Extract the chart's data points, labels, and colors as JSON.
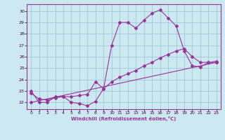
{
  "title": "",
  "xlabel": "Windchill (Refroidissement éolien,°C)",
  "bg_color": "#cce8f0",
  "line_color": "#993399",
  "xlim": [
    -0.5,
    23.5
  ],
  "ylim": [
    21.4,
    30.6
  ],
  "xticks": [
    0,
    1,
    2,
    3,
    4,
    5,
    6,
    7,
    8,
    9,
    10,
    11,
    12,
    13,
    14,
    15,
    16,
    17,
    18,
    19,
    20,
    21,
    22,
    23
  ],
  "yticks": [
    22,
    23,
    24,
    25,
    26,
    27,
    28,
    29,
    30
  ],
  "series1_x": [
    0,
    1,
    2,
    3,
    4,
    5,
    6,
    7,
    8,
    9,
    10,
    11,
    12,
    13,
    14,
    15,
    16,
    17,
    18,
    19,
    20,
    21,
    22,
    23
  ],
  "series1_y": [
    23.0,
    22.0,
    22.0,
    22.5,
    22.5,
    22.0,
    21.9,
    21.7,
    22.1,
    23.2,
    27.0,
    29.0,
    29.0,
    28.5,
    29.2,
    29.8,
    30.1,
    29.4,
    28.7,
    26.5,
    25.2,
    25.1,
    25.5,
    25.5
  ],
  "series2_x": [
    0,
    23
  ],
  "series2_y": [
    22.0,
    25.5
  ],
  "series3_x": [
    0,
    1,
    2,
    3,
    4,
    5,
    6,
    7,
    8,
    9,
    10,
    11,
    12,
    13,
    14,
    15,
    16,
    17,
    18,
    19,
    20,
    21,
    22,
    23
  ],
  "series3_y": [
    22.8,
    22.3,
    22.2,
    22.4,
    22.5,
    22.5,
    22.6,
    22.7,
    23.8,
    23.2,
    23.8,
    24.2,
    24.5,
    24.8,
    25.2,
    25.5,
    25.9,
    26.2,
    26.5,
    26.7,
    26.0,
    25.5,
    25.5,
    25.6
  ]
}
